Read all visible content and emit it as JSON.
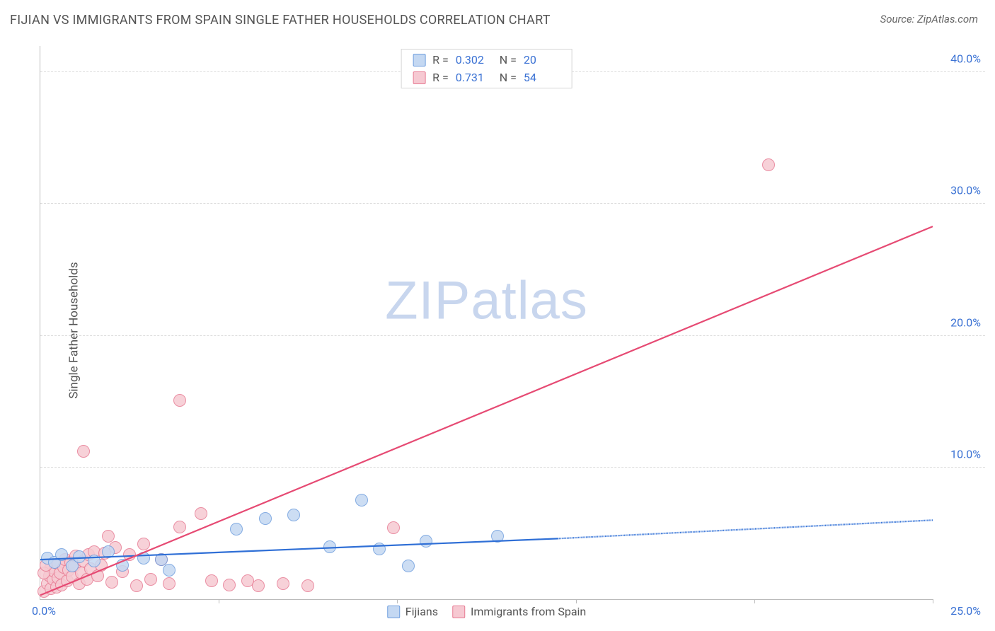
{
  "header": {
    "title": "FIJIAN VS IMMIGRANTS FROM SPAIN SINGLE FATHER HOUSEHOLDS CORRELATION CHART",
    "source": "Source: ZipAtlas.com"
  },
  "ylabel": "Single Father Households",
  "watermark": {
    "zip": "ZIP",
    "atlas": "atlas"
  },
  "axes": {
    "xlim": [
      0,
      25
    ],
    "ylim": [
      0,
      42
    ],
    "x_origin_label": "0.0%",
    "x_end_label": "25.0%",
    "yticks": [
      {
        "v": 10,
        "label": "10.0%"
      },
      {
        "v": 20,
        "label": "20.0%"
      },
      {
        "v": 30,
        "label": "30.0%"
      },
      {
        "v": 40,
        "label": "40.0%"
      }
    ],
    "xtick_positions": [
      5,
      10,
      15,
      20,
      25
    ],
    "tick_label_color": "#3b72d4",
    "grid_color": "#dcdcdc",
    "axis_color": "#bbbbbb"
  },
  "series": {
    "fijians": {
      "label": "Fijians",
      "fill": "#c4d8f2",
      "stroke": "#6f9ede",
      "line_color": "#2f6fd6",
      "marker_r": 9,
      "R": "0.302",
      "N": "20",
      "trend": {
        "x1": 0,
        "y1": 3.0,
        "x_solid_end": 14.5,
        "y_solid_end": 4.6,
        "x2": 25,
        "y2": 6.0
      },
      "points": [
        [
          0.2,
          3.1
        ],
        [
          0.4,
          2.8
        ],
        [
          0.6,
          3.4
        ],
        [
          0.9,
          2.5
        ],
        [
          1.1,
          3.2
        ],
        [
          1.5,
          2.9
        ],
        [
          1.9,
          3.6
        ],
        [
          2.3,
          2.6
        ],
        [
          2.9,
          3.1
        ],
        [
          3.4,
          3.0
        ],
        [
          3.6,
          2.2
        ],
        [
          5.5,
          5.3
        ],
        [
          6.3,
          6.1
        ],
        [
          7.1,
          6.4
        ],
        [
          8.1,
          4.0
        ],
        [
          9.0,
          7.5
        ],
        [
          9.5,
          3.8
        ],
        [
          10.3,
          2.5
        ],
        [
          10.8,
          4.4
        ],
        [
          12.8,
          4.8
        ]
      ]
    },
    "spain": {
      "label": "Immigrants from Spain",
      "fill": "#f6c9d2",
      "stroke": "#e77b93",
      "line_color": "#e64a73",
      "marker_r": 9,
      "R": "0.731",
      "N": "54",
      "trend": {
        "x1": 0,
        "y1": 0.3,
        "x2": 25,
        "y2": 28.3
      },
      "points": [
        [
          0.1,
          0.6
        ],
        [
          0.2,
          1.2
        ],
        [
          0.25,
          1.8
        ],
        [
          0.3,
          2.4
        ],
        [
          0.3,
          0.8
        ],
        [
          0.35,
          1.5
        ],
        [
          0.4,
          2.1
        ],
        [
          0.45,
          0.9
        ],
        [
          0.5,
          1.6
        ],
        [
          0.5,
          2.7
        ],
        [
          0.55,
          2.0
        ],
        [
          0.6,
          1.1
        ],
        [
          0.65,
          2.4
        ],
        [
          0.7,
          3.0
        ],
        [
          0.75,
          1.4
        ],
        [
          0.8,
          2.2
        ],
        [
          0.85,
          2.8
        ],
        [
          0.9,
          1.7
        ],
        [
          0.95,
          2.5
        ],
        [
          1.0,
          3.3
        ],
        [
          1.1,
          1.2
        ],
        [
          1.15,
          2.0
        ],
        [
          1.2,
          2.9
        ],
        [
          1.3,
          1.5
        ],
        [
          1.35,
          3.4
        ],
        [
          1.4,
          2.3
        ],
        [
          1.5,
          3.6
        ],
        [
          1.6,
          1.8
        ],
        [
          1.7,
          2.6
        ],
        [
          1.8,
          3.5
        ],
        [
          1.9,
          4.8
        ],
        [
          2.0,
          1.3
        ],
        [
          2.1,
          3.9
        ],
        [
          2.3,
          2.1
        ],
        [
          2.5,
          3.4
        ],
        [
          2.7,
          1.0
        ],
        [
          2.9,
          4.2
        ],
        [
          3.1,
          1.5
        ],
        [
          3.4,
          3.0
        ],
        [
          3.6,
          1.2
        ],
        [
          3.9,
          5.5
        ],
        [
          4.5,
          6.5
        ],
        [
          4.8,
          1.4
        ],
        [
          5.3,
          1.1
        ],
        [
          5.8,
          1.4
        ],
        [
          6.1,
          1.0
        ],
        [
          6.8,
          1.2
        ],
        [
          7.5,
          1.0
        ],
        [
          1.2,
          11.2
        ],
        [
          3.9,
          15.1
        ],
        [
          9.9,
          5.4
        ],
        [
          0.1,
          2.0
        ],
        [
          0.15,
          2.6
        ],
        [
          20.4,
          33.0
        ]
      ]
    }
  },
  "legend_bottom": [
    {
      "key": "fijians"
    },
    {
      "key": "spain"
    }
  ]
}
